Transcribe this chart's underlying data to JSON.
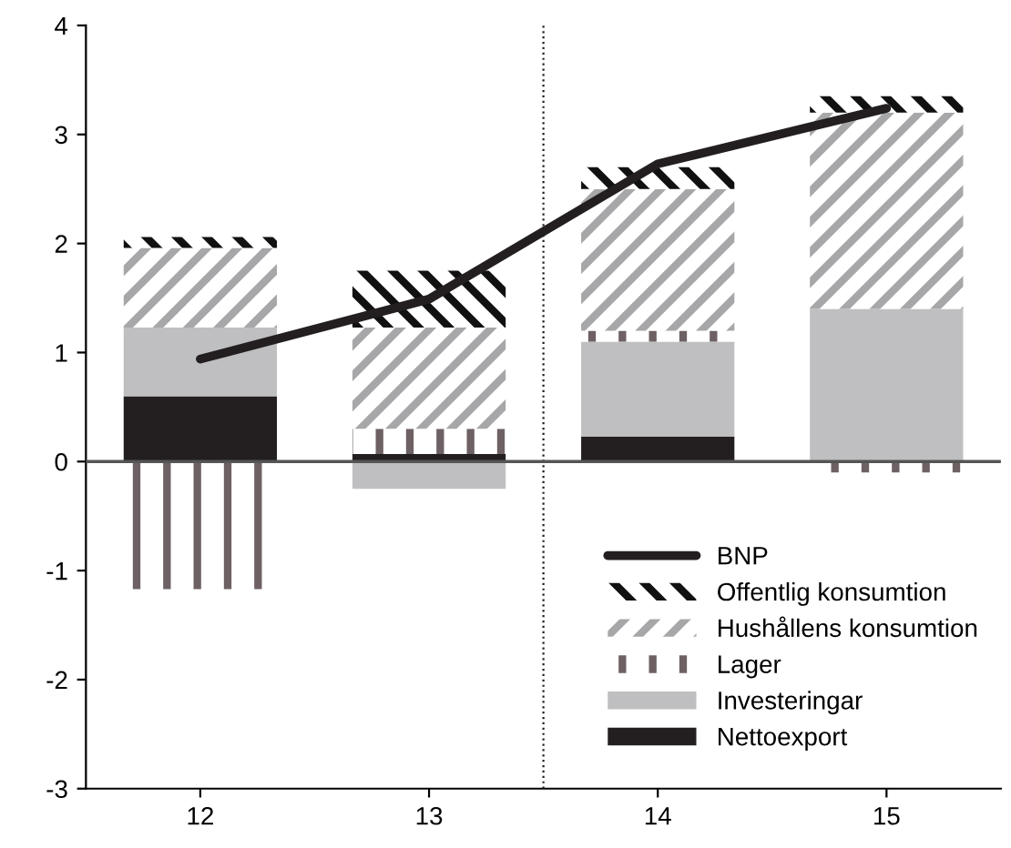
{
  "chart_data": {
    "type": "bar",
    "stacked": true,
    "x": [
      12,
      13,
      14,
      15
    ],
    "xlim": [
      11.5,
      15.5
    ],
    "xticks": [
      12,
      13,
      14,
      15
    ],
    "ylim": [
      -3,
      4
    ],
    "yticks": [
      -3,
      -2,
      -1,
      0,
      1,
      2,
      3,
      4
    ],
    "grid": false,
    "legend": "bottom right",
    "series": [
      {
        "name": "Nettoexport",
        "color": "#231f20",
        "values": [
          0.6,
          0.07,
          0.23,
          0
        ]
      },
      {
        "name": "Investeringar",
        "color": "#bfbfc1",
        "values": [
          0.63,
          -0.25,
          0.87,
          1.4
        ]
      },
      {
        "name": "Lager",
        "color": "#6e6163",
        "values": [
          -1.17,
          0.23,
          0.1,
          -0.1
        ]
      },
      {
        "name": "Hushållens konsumtion",
        "color": "#a7a7a9",
        "values": [
          0.73,
          0.93,
          1.3,
          1.8
        ]
      },
      {
        "name": "Offentlig konsumtion",
        "color": "#111111",
        "values": [
          0.1,
          0.52,
          0.2,
          0.15
        ]
      },
      {
        "name": "BNP",
        "type": "line",
        "color": "#231f20",
        "values": [
          0.94,
          1.49,
          2.73,
          3.24
        ]
      }
    ],
    "ref_lines": [
      {
        "axis": "x",
        "value": 13.5,
        "color": "#231f20",
        "line_style": "dotted"
      },
      {
        "axis": "y",
        "value": 0,
        "color": "#555555",
        "line_style": "solid"
      }
    ]
  }
}
